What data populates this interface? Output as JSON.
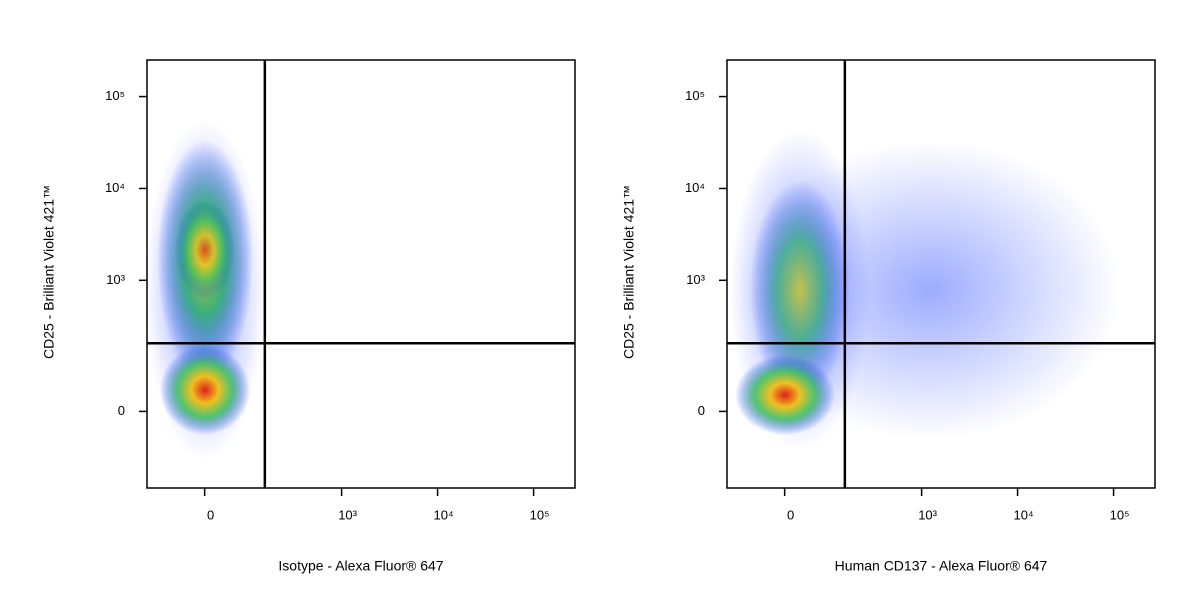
{
  "chart_data": [
    {
      "type": "scatter",
      "x_label": "Isotype - Alexa Fluor® 647",
      "y_label": "CD25 - Brilliant Violet 421™",
      "xscale": "biexponential",
      "yscale": "biexponential",
      "xlim": [
        -140,
        270000
      ],
      "ylim": [
        -250,
        250000
      ],
      "xticks": [
        0,
        {
          "value": 1000,
          "label": "10³"
        },
        {
          "value": 10000,
          "label": "10⁴"
        },
        {
          "value": 100000,
          "label": "10⁵"
        }
      ],
      "yticks": [
        0,
        {
          "value": 1000,
          "label": "10³"
        },
        {
          "value": 10000,
          "label": "10⁴"
        },
        {
          "value": 100000,
          "label": "10⁵"
        }
      ],
      "gate": {
        "x": 150,
        "y": 200
      }
    },
    {
      "type": "scatter",
      "x_label": "Human CD137 - Alexa Fluor® 647",
      "y_label": "CD25 - Brilliant Violet 421™",
      "xscale": "biexponential",
      "yscale": "biexponential",
      "xlim": [
        -140,
        270000
      ],
      "ylim": [
        -250,
        250000
      ],
      "xticks": [
        0,
        {
          "value": 1000,
          "label": "10³"
        },
        {
          "value": 10000,
          "label": "10⁴"
        },
        {
          "value": 100000,
          "label": "10⁵"
        }
      ],
      "yticks": [
        0,
        {
          "value": 1000,
          "label": "10³"
        },
        {
          "value": 10000,
          "label": "10⁴"
        },
        {
          "value": 100000,
          "label": "10⁵"
        }
      ],
      "gate": {
        "x": 150,
        "y": 200
      }
    }
  ]
}
